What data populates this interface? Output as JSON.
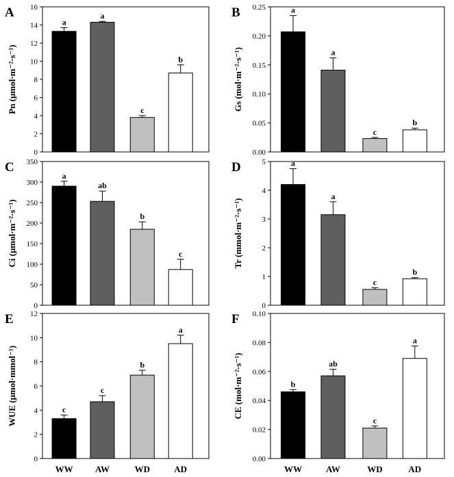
{
  "figure": {
    "categories": [
      "WW",
      "AW",
      "WD",
      "AD"
    ],
    "bar_colors": [
      "#000000",
      "#5f5f5f",
      "#c0c0c0",
      "#ffffff"
    ]
  },
  "chart_data": [
    {
      "type": "bar",
      "panel": "A",
      "ylabel": "Pn (μmol·m⁻²·s⁻¹)",
      "categories": [
        "WW",
        "AW",
        "WD",
        "AD"
      ],
      "values": [
        13.3,
        14.3,
        3.8,
        8.7
      ],
      "errors": [
        0.4,
        0.1,
        0.2,
        0.9
      ],
      "significance": [
        "a",
        "a",
        "c",
        "b"
      ],
      "ylim": [
        0,
        16
      ],
      "yticks": [
        0,
        2,
        4,
        6,
        8,
        10,
        12,
        14,
        16
      ],
      "yticklabels": [
        "0",
        "2",
        "4",
        "6",
        "8",
        "10",
        "12",
        "14",
        "16"
      ]
    },
    {
      "type": "bar",
      "panel": "B",
      "ylabel": "Gs (mol·m⁻²·s⁻¹)",
      "categories": [
        "WW",
        "AW",
        "WD",
        "AD"
      ],
      "values": [
        0.207,
        0.141,
        0.023,
        0.038
      ],
      "errors": [
        0.028,
        0.021,
        0.002,
        0.003
      ],
      "significance": [
        "a",
        "a",
        "c",
        "b"
      ],
      "ylim": [
        0,
        0.25
      ],
      "yticks": [
        0,
        0.05,
        0.1,
        0.15,
        0.2,
        0.25
      ],
      "yticklabels": [
        "0.00",
        "0.05",
        "0.10",
        "0.15",
        "0.20",
        "0.25"
      ]
    },
    {
      "type": "bar",
      "panel": "C",
      "ylabel": "Ci (μmol·m⁻²·s⁻¹)",
      "categories": [
        "WW",
        "AW",
        "WD",
        "AD"
      ],
      "values": [
        290,
        253,
        185,
        87
      ],
      "errors": [
        12,
        25,
        18,
        25
      ],
      "significance": [
        "a",
        "ab",
        "b",
        "c"
      ],
      "ylim": [
        0,
        350
      ],
      "yticks": [
        0,
        50,
        100,
        150,
        200,
        250,
        300,
        350
      ],
      "yticklabels": [
        "0",
        "50",
        "100",
        "150",
        "200",
        "250",
        "300",
        "350"
      ]
    },
    {
      "type": "bar",
      "panel": "D",
      "ylabel": "Tr (mmol·m⁻²·s⁻¹)",
      "categories": [
        "WW",
        "AW",
        "WD",
        "AD"
      ],
      "values": [
        4.2,
        3.15,
        0.55,
        0.92
      ],
      "errors": [
        0.55,
        0.45,
        0.06,
        0.04
      ],
      "significance": [
        "a",
        "a",
        "c",
        "b"
      ],
      "ylim": [
        0,
        5
      ],
      "yticks": [
        0,
        1,
        2,
        3,
        4,
        5
      ],
      "yticklabels": [
        "0",
        "1",
        "2",
        "3",
        "4",
        "5"
      ]
    },
    {
      "type": "bar",
      "panel": "E",
      "ylabel": "WUE (μmol·mmol⁻¹)",
      "categories": [
        "WW",
        "AW",
        "WD",
        "AD"
      ],
      "values": [
        3.3,
        4.7,
        6.9,
        9.5
      ],
      "errors": [
        0.3,
        0.5,
        0.4,
        0.7
      ],
      "significance": [
        "c",
        "c",
        "b",
        "a"
      ],
      "ylim": [
        0,
        12
      ],
      "yticks": [
        0,
        2,
        4,
        6,
        8,
        10,
        12
      ],
      "yticklabels": [
        "0",
        "2",
        "4",
        "6",
        "8",
        "10",
        "12"
      ]
    },
    {
      "type": "bar",
      "panel": "F",
      "ylabel": "CE (mol·m⁻²·s⁻¹)",
      "categories": [
        "WW",
        "AW",
        "WD",
        "AD"
      ],
      "values": [
        0.046,
        0.057,
        0.021,
        0.069
      ],
      "errors": [
        0.0015,
        0.0045,
        0.0015,
        0.0085
      ],
      "significance": [
        "b",
        "ab",
        "c",
        "a"
      ],
      "ylim": [
        0,
        0.1
      ],
      "yticks": [
        0,
        0.02,
        0.04,
        0.06,
        0.08,
        0.1
      ],
      "yticklabels": [
        "0.00",
        "0.02",
        "0.04",
        "0.06",
        "0.08",
        "0.10"
      ]
    }
  ]
}
